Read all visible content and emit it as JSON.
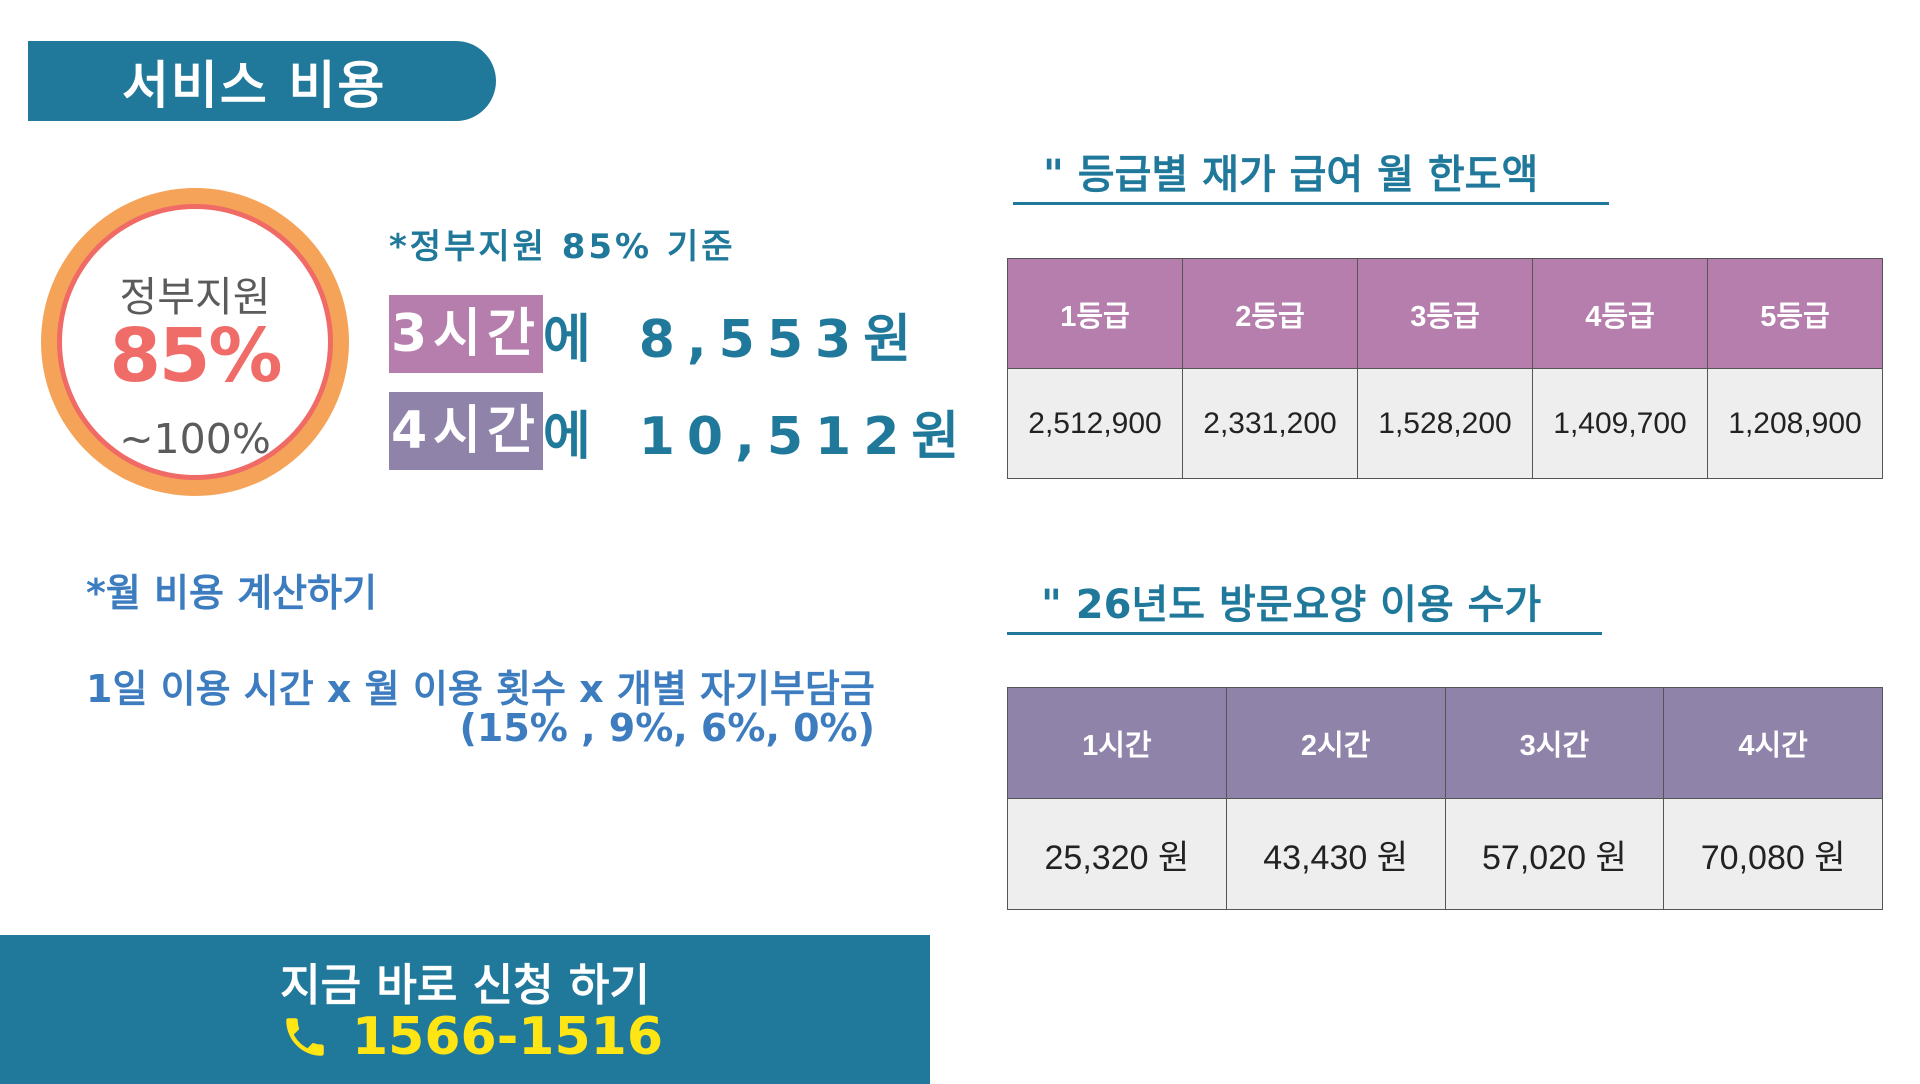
{
  "header": {
    "title": "서비스 비용"
  },
  "support": {
    "label": "정부지원",
    "percent": "85%",
    "range": "~100%",
    "note": "*정부지원 85% 기준"
  },
  "prices": [
    {
      "hours": "3시간",
      "suffix": "에",
      "amount": "8,553원"
    },
    {
      "hours": "4시간",
      "suffix": "에",
      "amount": "10,512원"
    }
  ],
  "calculation": {
    "title": "*월 비용 계산하기",
    "formula": "1일 이용 시간 x 월 이용 횟수 x 개별 자기부담금",
    "rates": "(15% , 9%, 6%, 0%)"
  },
  "cta": {
    "label": "지금 바로 신청 하기",
    "phone": "1566-1516",
    "icon": "phone-icon"
  },
  "grade_table": {
    "title": "\" 등급별 재가 급여 월 한도액",
    "headers": [
      "1등급",
      "2등급",
      "3등급",
      "4등급",
      "5등급"
    ],
    "values": [
      "2,512,900",
      "2,331,200",
      "1,528,200",
      "1,409,700",
      "1,208,900"
    ]
  },
  "visit_table": {
    "title": "\" 26년도 방문요양 이용 수가",
    "headers": [
      "1시간",
      "2시간",
      "3시간",
      "4시간"
    ],
    "values": [
      "25,320 원",
      "43,430 원",
      "57,020 원",
      "70,080 원"
    ]
  },
  "colors": {
    "primary": "#20799a",
    "grade_header": "#b57eac",
    "visit_header": "#8f83aa",
    "ring_outer": "#f5a359",
    "ring_inner": "#f06a66",
    "phone": "#ffe514",
    "text_blue": "#3d7dbf"
  }
}
